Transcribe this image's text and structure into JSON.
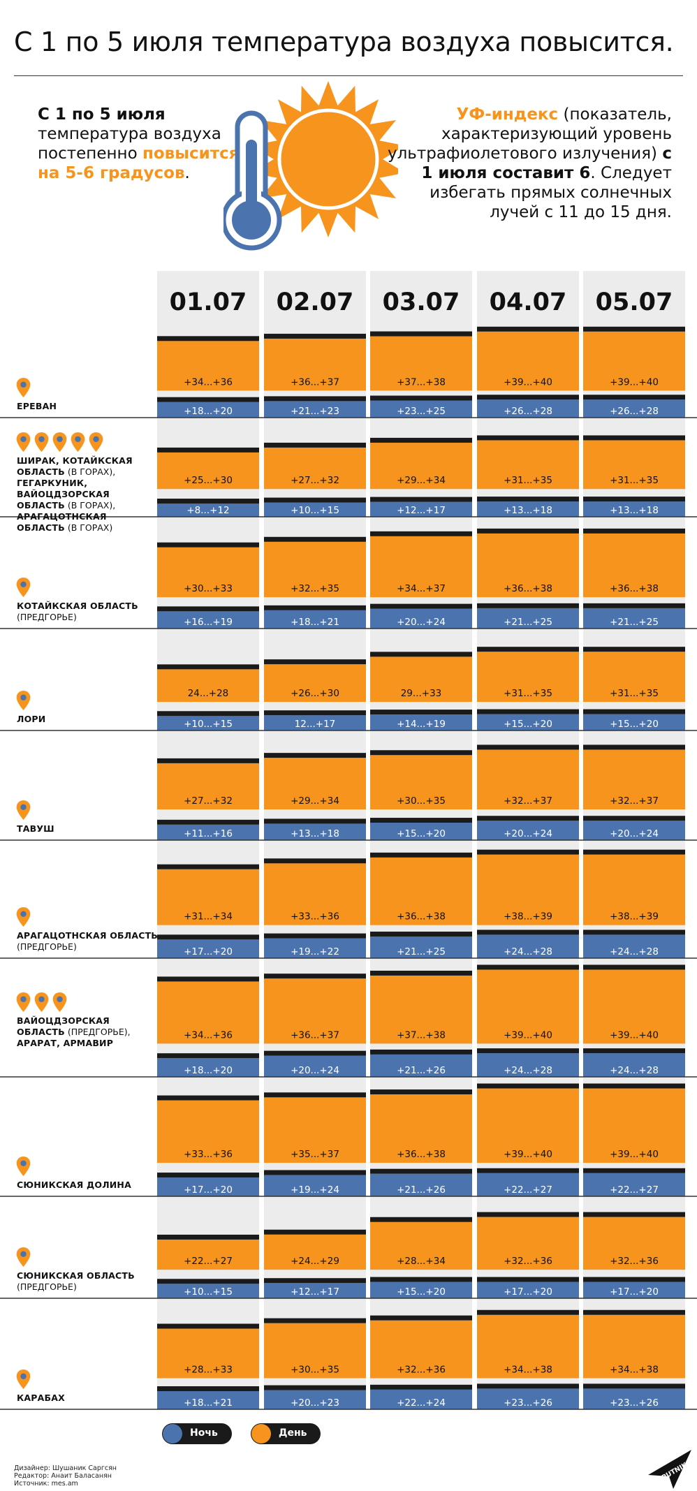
{
  "title": "С 1 по 5 июля температура воздуха повысится.",
  "intro_left": {
    "line_bold": "С 1 по 5 июля",
    "text": "температура воздуха постепенно",
    "highlight": "повысится на 5-6 градусов",
    "end": "."
  },
  "intro_right": {
    "highlight": "УФ-индекс",
    "text": " (показатель, характеризующий уровень ультрафиолетового излучения) ",
    "bold": "с 1 июля составит 6",
    "end": ". Следует избегать прямых солнечных лучей с 11 до 15 дня."
  },
  "colors": {
    "day": "#f6941e",
    "night": "#4b74ae",
    "bg": "#ececec",
    "cap": "#1a1a1a"
  },
  "legend": {
    "night": "Ночь",
    "day": "День"
  },
  "credits": {
    "designer": "Дизайнер: Шушаник Саргсян",
    "editor": "Редактор: Анаит Баласанян",
    "source": "Источник: mes.am"
  },
  "logo_text": "SPUTNIK",
  "chart_data": {
    "type": "table",
    "dates": [
      "01.07",
      "02.07",
      "03.07",
      "04.07",
      "05.07"
    ],
    "regions": [
      {
        "parts": [
          {
            "t": "ЕРЕВАН",
            "b": true
          }
        ],
        "pins": 1,
        "day": [
          "+34...+36",
          "+36...+37",
          "+37...+38",
          "+39...+40",
          "+39...+40"
        ],
        "night": [
          "+18...+20",
          "+21...+23",
          "+23...+25",
          "+26...+28",
          "+26...+28"
        ]
      },
      {
        "parts": [
          {
            "t": "ШИРАК, КОТАЙКСКАЯ ОБЛАСТЬ",
            "b": true
          },
          {
            "t": " (В ГОРАХ), ",
            "b": false
          },
          {
            "t": "ГЕГАРКУНИК, ВАЙОЦДЗОРСКАЯ ОБЛАСТЬ",
            "b": true
          },
          {
            "t": " (В ГОРАХ), ",
            "b": false
          },
          {
            "t": "АРАГАЦОТНСКАЯ ОБЛАСТЬ",
            "b": true
          },
          {
            "t": " (В ГОРАХ)",
            "b": false
          }
        ],
        "pins": 5,
        "day": [
          "+25...+30",
          "+27...+32",
          "+29...+34",
          "+31...+35",
          "+31...+35"
        ],
        "night": [
          "+8...+12",
          "+10...+15",
          "+12...+17",
          "+13...+18",
          "+13...+18"
        ]
      },
      {
        "parts": [
          {
            "t": "КОТАЙКСКАЯ ОБЛАСТЬ",
            "b": true
          },
          {
            "t": " (ПРЕДГОРЬЕ)",
            "b": false
          }
        ],
        "pins": 1,
        "day": [
          "+30...+33",
          "+32...+35",
          "+34...+37",
          "+36...+38",
          "+36...+38"
        ],
        "night": [
          "+16...+19",
          "+18...+21",
          "+20...+24",
          "+21...+25",
          "+21...+25"
        ]
      },
      {
        "parts": [
          {
            "t": "ЛОРИ",
            "b": true
          }
        ],
        "pins": 1,
        "day": [
          "24...+28",
          "+26...+30",
          "29...+33",
          "+31...+35",
          "+31...+35"
        ],
        "night": [
          "+10...+15",
          "12...+17",
          "+14...+19",
          "+15...+20",
          "+15...+20"
        ]
      },
      {
        "parts": [
          {
            "t": "ТАВУШ",
            "b": true
          }
        ],
        "pins": 1,
        "day": [
          "+27...+32",
          "+29...+34",
          "+30...+35",
          "+32...+37",
          "+32...+37"
        ],
        "night": [
          "+11...+16",
          "+13...+18",
          "+15...+20",
          "+20...+24",
          "+20...+24"
        ]
      },
      {
        "parts": [
          {
            "t": "АРАГАЦОТНСКАЯ ОБЛАСТЬ",
            "b": true
          },
          {
            "t": " (ПРЕДГОРЬЕ)",
            "b": false
          }
        ],
        "pins": 1,
        "day": [
          "+31...+34",
          "+33...+36",
          "+36...+38",
          "+38...+39",
          "+38...+39"
        ],
        "night": [
          "+17...+20",
          "+19...+22",
          "+21...+25",
          "+24...+28",
          "+24...+28"
        ]
      },
      {
        "parts": [
          {
            "t": "ВАЙОЦДЗОРСКАЯ ОБЛАСТЬ",
            "b": true
          },
          {
            "t": " (ПРЕДГОРЬЕ), ",
            "b": false
          },
          {
            "t": "АРАРАТ, АРМАВИР",
            "b": true
          }
        ],
        "pins": 3,
        "day": [
          "+34...+36",
          "+36...+37",
          "+37...+38",
          "+39...+40",
          "+39...+40"
        ],
        "night": [
          "+18...+20",
          "+20...+24",
          "+21...+26",
          "+24...+28",
          "+24...+28"
        ]
      },
      {
        "parts": [
          {
            "t": "СЮНИКСКАЯ ДОЛИНА",
            "b": true
          }
        ],
        "pins": 1,
        "day": [
          "+33...+36",
          "+35...+37",
          "+36...+38",
          "+39...+40",
          "+39...+40"
        ],
        "night": [
          "+17...+20",
          "+19...+24",
          "+21...+26",
          "+22...+27",
          "+22...+27"
        ]
      },
      {
        "parts": [
          {
            "t": "СЮНИКСКАЯ ОБЛАСТЬ",
            "b": true
          },
          {
            "t": " (ПРЕДГОРЬЕ)",
            "b": false
          }
        ],
        "pins": 1,
        "day": [
          "+22...+27",
          "+24...+29",
          "+28...+34",
          "+32...+36",
          "+32...+36"
        ],
        "night": [
          "+10...+15",
          "+12...+17",
          "+15...+20",
          "+17...+20",
          "+17...+20"
        ]
      },
      {
        "parts": [
          {
            "t": "КАРАБАХ",
            "b": true
          }
        ],
        "pins": 1,
        "day": [
          "+28...+33",
          "+30...+35",
          "+32...+36",
          "+34...+38",
          "+34...+38"
        ],
        "night": [
          "+18...+21",
          "+20...+23",
          "+22...+24",
          "+23...+26",
          "+23...+26"
        ]
      }
    ]
  }
}
